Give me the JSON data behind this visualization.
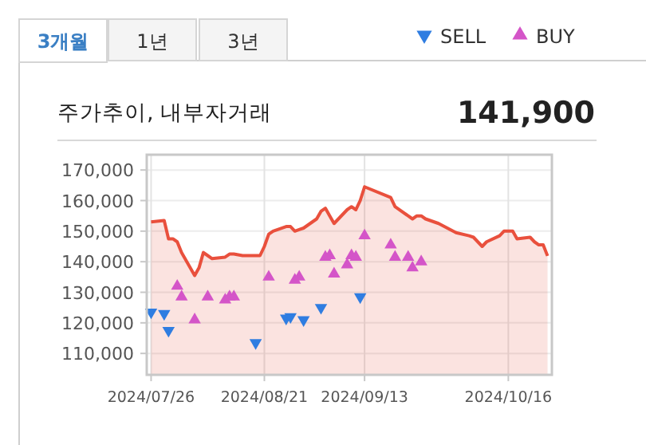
{
  "chart_data": {
    "type": "area",
    "title": "주가추이, 내부자거래",
    "annotations": [
      "3개월",
      "1년",
      "3년",
      "141,900"
    ],
    "x": [
      "2024-07-26",
      "2024-07-29",
      "2024-07-30",
      "2024-07-31",
      "2024-08-01",
      "2024-08-02",
      "2024-08-05",
      "2024-08-06",
      "2024-08-07",
      "2024-08-08",
      "2024-08-09",
      "2024-08-12",
      "2024-08-13",
      "2024-08-14",
      "2024-08-16",
      "2024-08-19",
      "2024-08-20",
      "2024-08-21",
      "2024-08-22",
      "2024-08-23",
      "2024-08-26",
      "2024-08-27",
      "2024-08-28",
      "2024-08-29",
      "2024-08-30",
      "2024-09-02",
      "2024-09-03",
      "2024-09-04",
      "2024-09-05",
      "2024-09-06",
      "2024-09-09",
      "2024-09-10",
      "2024-09-11",
      "2024-09-12",
      "2024-09-13",
      "2024-09-19",
      "2024-09-20",
      "2024-09-23",
      "2024-09-24",
      "2024-09-25",
      "2024-09-26",
      "2024-09-27",
      "2024-09-30",
      "2024-10-02",
      "2024-10-04",
      "2024-10-07",
      "2024-10-08",
      "2024-10-10",
      "2024-10-11",
      "2024-10-14",
      "2024-10-15",
      "2024-10-16",
      "2024-10-17",
      "2024-10-18",
      "2024-10-21",
      "2024-10-22",
      "2024-10-23",
      "2024-10-24",
      "2024-10-25"
    ],
    "series": [
      {
        "color": "#e9503d",
        "values": [
          153000,
          153500,
          147500,
          147500,
          146500,
          143000,
          135500,
          138000,
          143000,
          142000,
          141000,
          141500,
          142500,
          142500,
          142000,
          142000,
          142000,
          145000,
          149000,
          150000,
          151500,
          151500,
          150000,
          150500,
          151000,
          154000,
          156500,
          157500,
          155000,
          152500,
          157000,
          158000,
          157000,
          160000,
          164500,
          161000,
          158000,
          155000,
          154000,
          155000,
          155000,
          154000,
          152500,
          151000,
          149500,
          148500,
          148000,
          145000,
          146500,
          148500,
          150000,
          150000,
          150000,
          147500,
          148000,
          146500,
          145500,
          145500,
          141900
        ]
      },
      {
        "type": "scatter",
        "name": "SELL",
        "color": "#2f7de1",
        "marker": "triangle-down",
        "x": [
          "2024-07-26",
          "2024-07-29",
          "2024-07-30",
          "2024-08-19",
          "2024-08-26",
          "2024-08-27",
          "2024-08-30",
          "2024-09-03",
          "2024-09-12"
        ],
        "values": [
          123500,
          123000,
          117500,
          113500,
          121500,
          122000,
          121000,
          125000,
          128500
        ]
      },
      {
        "type": "scatter",
        "name": "BUY",
        "color": "#d455c8",
        "marker": "triangle",
        "x": [
          "2024-08-01",
          "2024-08-02",
          "2024-08-05",
          "2024-08-08",
          "2024-08-12",
          "2024-08-13",
          "2024-08-14",
          "2024-08-22",
          "2024-08-28",
          "2024-08-29",
          "2024-09-04",
          "2024-09-05",
          "2024-09-06",
          "2024-09-09",
          "2024-09-10",
          "2024-09-11",
          "2024-09-13",
          "2024-09-19",
          "2024-09-20",
          "2024-09-23",
          "2024-09-24",
          "2024-09-26"
        ],
        "values": [
          132000,
          128500,
          121000,
          128500,
          127500,
          128500,
          128500,
          135000,
          134000,
          135000,
          141500,
          142000,
          136000,
          139000,
          142000,
          141500,
          148500,
          145500,
          141500,
          141500,
          138000,
          140000
        ]
      }
    ],
    "xlim": [
      "2024-07-25",
      "2024-10-26"
    ],
    "xticks": [
      {
        "value": "2024-07-26",
        "label": "2024/07/26"
      },
      {
        "value": "2024-08-21",
        "label": "2024/08/21"
      },
      {
        "value": "2024-09-13",
        "label": "2024/09/13"
      },
      {
        "value": "2024-10-16",
        "label": "2024/10/16"
      }
    ],
    "ylim": [
      103000,
      175000
    ],
    "yticks": [
      {
        "value": 110000,
        "label": "110,000"
      },
      {
        "value": 120000,
        "label": "120,000"
      },
      {
        "value": 130000,
        "label": "130,000"
      },
      {
        "value": 140000,
        "label": "140,000"
      },
      {
        "value": 150000,
        "label": "150,000"
      },
      {
        "value": 160000,
        "label": "160,000"
      },
      {
        "value": 170000,
        "label": "170,000"
      }
    ],
    "grid": true,
    "legend": "top right"
  }
}
